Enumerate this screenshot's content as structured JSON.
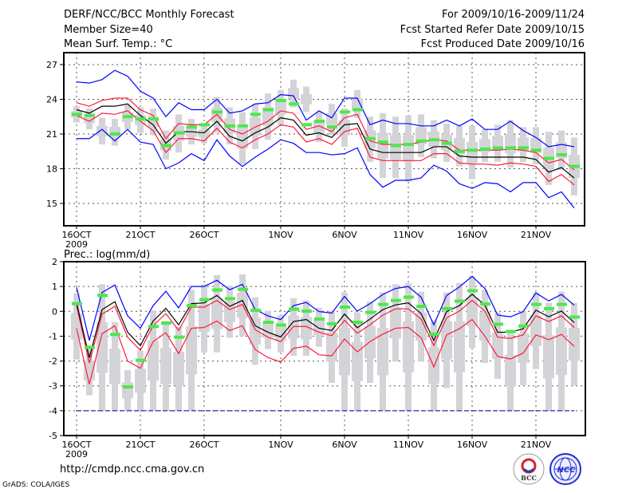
{
  "header": {
    "title": "DERF/NCC/BCC Monthly Forecast",
    "member_size": "Member Size=40",
    "variable": "Mean Surf. Temp.: °C",
    "period": "For 2009/10/16-2009/11/24",
    "start_date": "Fcst Started Refer Date 2009/10/15",
    "produced_date": "Fcst Produced Date 2009/10/16"
  },
  "footer": {
    "url": "http://cmdp.ncc.cma.gov.cn",
    "grads": "GrADS: COLA/IGES",
    "logo_bcc": "BCC",
    "logo_ncc": "NCC"
  },
  "colors": {
    "max_min": "#0000ff",
    "spread": "#ff1a3c",
    "mean": "#000000",
    "obs": "#4de84c",
    "box": "#d4d4d8",
    "grid": "#555555"
  },
  "chart_data": [
    {
      "type": "line",
      "title": "Mean Surf. Temp.: °C",
      "x_tick_labels": [
        "16OCT",
        "21OCT",
        "26OCT",
        "1NOV",
        "6NOV",
        "11NOV",
        "16NOV",
        "21NOV"
      ],
      "x_tick_days": [
        0,
        5,
        10,
        16,
        21,
        26,
        31,
        36
      ],
      "x_year_label": "2009",
      "ylim": [
        13.07,
        28.03
      ],
      "y_ticks": [
        15,
        18,
        21,
        24,
        27
      ],
      "grid": true,
      "series": {
        "ens_max": [
          25.5,
          25.4,
          25.7,
          26.5,
          26.0,
          24.7,
          24.1,
          22.5,
          23.7,
          23.1,
          23.1,
          24.0,
          22.8,
          23.0,
          23.6,
          23.7,
          24.4,
          24.3,
          22.2,
          23.0,
          22.4,
          24.1,
          24.1,
          21.8,
          22.2,
          21.9,
          21.9,
          21.7,
          21.7,
          22.2,
          21.7,
          22.3,
          21.4,
          21.4,
          22.1,
          21.3,
          20.7,
          19.9,
          20.1,
          19.9
        ],
        "spread_upper": [
          23.7,
          23.4,
          23.9,
          24.1,
          24.1,
          23.1,
          22.6,
          20.6,
          21.9,
          21.8,
          21.8,
          22.7,
          21.4,
          21.0,
          21.6,
          22.1,
          23.0,
          22.8,
          21.4,
          21.7,
          21.2,
          22.4,
          22.7,
          20.4,
          20.1,
          20.1,
          20.1,
          20.3,
          20.5,
          20.4,
          19.6,
          19.6,
          19.6,
          19.6,
          19.7,
          19.6,
          19.4,
          18.5,
          18.8,
          17.9
        ],
        "ens_mean": [
          23.1,
          22.8,
          23.4,
          23.4,
          23.6,
          22.6,
          21.8,
          20.2,
          21.2,
          21.2,
          21.1,
          22.1,
          20.8,
          20.4,
          21.1,
          21.6,
          22.4,
          22.2,
          20.9,
          21.1,
          20.7,
          21.8,
          21.9,
          19.7,
          19.4,
          19.4,
          19.4,
          19.4,
          19.9,
          19.9,
          19.1,
          19.0,
          19.0,
          19.0,
          19.0,
          19.0,
          18.8,
          17.7,
          18.1,
          17.2
        ],
        "spread_lower": [
          22.6,
          22.1,
          22.8,
          22.7,
          23.0,
          22.1,
          21.3,
          19.4,
          20.6,
          20.6,
          20.4,
          21.5,
          20.3,
          19.8,
          20.5,
          21.0,
          21.8,
          21.6,
          20.3,
          20.6,
          20.1,
          21.2,
          21.5,
          19.0,
          18.7,
          18.7,
          18.7,
          18.7,
          19.3,
          19.3,
          18.5,
          18.4,
          18.4,
          18.3,
          18.5,
          18.4,
          18.2,
          16.9,
          17.5,
          16.6
        ],
        "ens_min": [
          20.6,
          20.6,
          21.4,
          20.4,
          21.4,
          20.3,
          20.1,
          18.0,
          18.5,
          19.3,
          18.7,
          20.5,
          19.1,
          18.2,
          19.0,
          19.7,
          20.5,
          20.2,
          19.4,
          19.4,
          19.2,
          19.3,
          19.8,
          17.5,
          16.4,
          17.0,
          17.0,
          17.2,
          18.3,
          17.8,
          16.7,
          16.3,
          16.8,
          16.7,
          16.0,
          16.8,
          16.8,
          15.5,
          16.0,
          14.6
        ],
        "obs": [
          22.7,
          22.6,
          null,
          21.0,
          22.5,
          22.3,
          22.3,
          20.0,
          21.1,
          21.6,
          21.8,
          22.9,
          21.7,
          21.7,
          22.7,
          23.1,
          23.9,
          23.6,
          21.8,
          22.1,
          21.6,
          22.9,
          23.1,
          20.6,
          20.3,
          20.0,
          20.1,
          20.4,
          20.5,
          20.2,
          19.5,
          19.6,
          19.7,
          19.8,
          19.8,
          19.8,
          19.6,
          18.9,
          19.2,
          18.2
        ],
        "box_high": [
          23.4,
          23.2,
          22.4,
          22.3,
          23.5,
          23.3,
          23.2,
          21.3,
          22.7,
          22.3,
          21.9,
          24.2,
          23.3,
          22.9,
          23.6,
          24.5,
          24.8,
          25.7,
          25.1,
          22.9,
          23.6,
          23.2,
          24.8,
          22.5,
          22.8,
          22.5,
          22.6,
          22.7,
          22.2,
          21.9,
          21.7,
          21.7,
          21.4,
          21.8,
          22.2,
          21.6,
          21.6,
          21.2,
          21.3,
          20.7
        ],
        "box_low": [
          22.0,
          21.4,
          20.1,
          20.0,
          21.4,
          21.1,
          20.9,
          18.8,
          19.4,
          20.1,
          20.2,
          21.1,
          20.1,
          18.4,
          19.7,
          20.5,
          21.8,
          23.3,
          22.9,
          20.3,
          20.9,
          19.9,
          22.4,
          18.6,
          17.2,
          17.2,
          16.9,
          19.0,
          18.9,
          18.6,
          18.2,
          17.1,
          18.6,
          18.6,
          18.1,
          18.6,
          18.4,
          16.6,
          17.9,
          15.7
        ]
      }
    },
    {
      "type": "line",
      "title": "Prec.: log(mm/d)",
      "x_tick_labels": [
        "16OCT",
        "21OCT",
        "26OCT",
        "1NOV",
        "6NOV",
        "11NOV",
        "16NOV",
        "21NOV"
      ],
      "x_tick_days": [
        0,
        5,
        10,
        16,
        21,
        26,
        31,
        36
      ],
      "x_year_label": "2009",
      "ylim": [
        -5,
        2
      ],
      "y_ticks": [
        -5,
        -4,
        -3,
        -2,
        -1,
        0,
        1,
        2
      ],
      "grid": true,
      "series": {
        "ens_max": [
          0.96,
          -1.17,
          0.76,
          1.06,
          -0.18,
          -0.68,
          0.23,
          0.81,
          0.14,
          1.0,
          1.0,
          1.25,
          0.87,
          1.09,
          0.07,
          -0.18,
          -0.33,
          0.23,
          0.36,
          -0.01,
          -0.07,
          0.6,
          0.01,
          0.31,
          0.68,
          0.92,
          1.0,
          0.57,
          -0.54,
          0.64,
          0.98,
          1.41,
          0.92,
          -0.15,
          -0.22,
          -0.01,
          0.74,
          0.42,
          0.68,
          0.25
        ],
        "spread_upper": [
          0.23,
          -2.08,
          -0.11,
          0.2,
          -1.04,
          -1.57,
          -0.58,
          -0.09,
          -0.77,
          0.17,
          0.17,
          0.44,
          0.07,
          0.28,
          -0.74,
          -1.04,
          -1.22,
          -0.61,
          -0.61,
          -0.84,
          -0.98,
          -0.36,
          -0.88,
          -0.54,
          -0.15,
          0.1,
          0.1,
          -0.31,
          -1.38,
          -0.26,
          0.01,
          0.44,
          0.01,
          -1.04,
          -1.09,
          -0.95,
          -0.18,
          -0.41,
          -0.18,
          -0.65
        ],
        "ens_mean": [
          0.34,
          -1.86,
          0.07,
          0.39,
          -0.84,
          -1.38,
          -0.39,
          0.12,
          -0.54,
          0.31,
          0.34,
          0.64,
          0.2,
          0.44,
          -0.58,
          -0.84,
          -1.03,
          -0.41,
          -0.33,
          -0.68,
          -0.77,
          -0.11,
          -0.66,
          -0.31,
          0.07,
          0.26,
          0.34,
          -0.09,
          -1.17,
          -0.01,
          0.23,
          0.69,
          0.25,
          -0.84,
          -0.84,
          -0.7,
          0.05,
          -0.22,
          0.01,
          -0.45
        ],
        "spread_lower": [
          -0.68,
          -2.93,
          -0.9,
          -0.58,
          -2.0,
          -2.29,
          -1.22,
          -0.86,
          -1.7,
          -0.68,
          -0.65,
          -0.39,
          -0.77,
          -0.58,
          -1.54,
          -1.86,
          -2.04,
          -1.49,
          -1.4,
          -1.75,
          -1.79,
          -1.11,
          -1.63,
          -1.22,
          -0.92,
          -0.68,
          -0.65,
          -1.06,
          -2.24,
          -0.95,
          -0.7,
          -0.33,
          -1.0,
          -1.81,
          -1.92,
          -1.68,
          -0.95,
          -1.14,
          -0.93,
          -1.41
        ],
        "ens_min": [
          -4,
          -4,
          -4,
          -4,
          -4,
          -4,
          -4,
          -4,
          -4,
          -4,
          -4,
          -4,
          -4,
          -4,
          -4,
          -4,
          -4,
          -4,
          -4,
          -4,
          -4,
          -4,
          -4,
          -4,
          -4,
          -4,
          -4,
          -4,
          -4,
          -4,
          -4,
          -4,
          -4,
          -4,
          -4,
          -4,
          -4,
          -4,
          -4,
          -4
        ],
        "obs": [
          0.31,
          -1.45,
          0.64,
          -0.93,
          -3.04,
          -1.97,
          -0.61,
          -0.47,
          -1.04,
          0.23,
          0.47,
          0.86,
          0.51,
          0.89,
          0.04,
          -0.44,
          -0.55,
          0.09,
          0.01,
          -0.31,
          -0.5,
          0.17,
          -0.44,
          -0.04,
          0.28,
          0.44,
          0.57,
          0.2,
          -0.92,
          0.11,
          0.41,
          0.83,
          0.3,
          -0.52,
          -0.81,
          -0.59,
          0.28,
          0.11,
          0.28,
          -0.23
        ],
        "box_high": [
          0.73,
          -1.38,
          1.09,
          -0.44,
          -2.37,
          -1.59,
          0.04,
          -0.39,
          -0.61,
          0.87,
          1.09,
          1.46,
          1.03,
          1.49,
          0.57,
          0.01,
          -0.15,
          0.53,
          0.44,
          0.14,
          0.01,
          0.76,
          -0.04,
          0.39,
          0.76,
          1.09,
          1.14,
          0.79,
          -0.36,
          0.76,
          1.14,
          1.43,
          0.87,
          -0.04,
          -0.79,
          0.01,
          0.76,
          0.34,
          0.79,
          0.34
        ],
        "box_low": [
          -1.94,
          -3.38,
          -4,
          -4,
          -4,
          -4,
          -4,
          -4,
          -4,
          -4,
          -1.65,
          -1.65,
          -1.06,
          -1.0,
          -2.15,
          -1.52,
          -1.65,
          -1.79,
          -1.79,
          -1.43,
          -2.88,
          -4,
          -4,
          -2.88,
          -4,
          -2.02,
          -4,
          -2.02,
          -4,
          -3.09,
          -4,
          -1.48,
          -2.08,
          -2.72,
          -4,
          -2.97,
          -2.32,
          -4,
          -4,
          -2.99
        ]
      }
    }
  ]
}
